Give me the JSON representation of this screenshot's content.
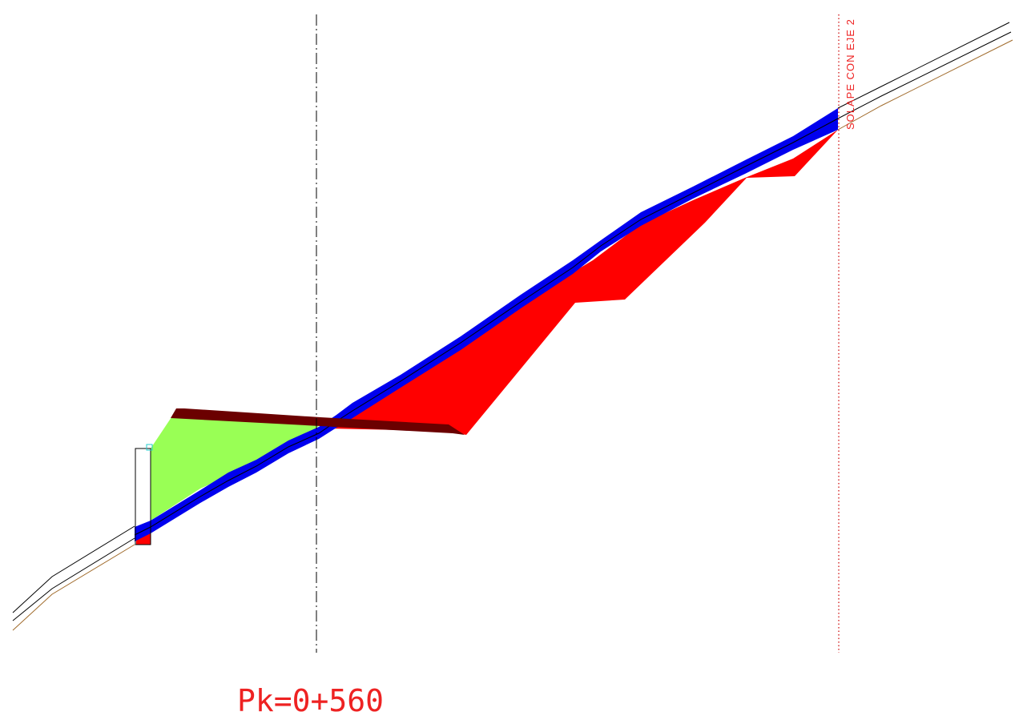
{
  "section": {
    "station_label": "Pk=0+560",
    "overlap_label": "SOLAPE CON EJE 2"
  },
  "colors": {
    "background": "#ffffff",
    "fill_cut": "#ff0000",
    "fill_embankment": "#99ff55",
    "pavement": "#0000ee",
    "platform_band": "#6b0000",
    "terrain_line": "#000000",
    "terrain_line_lower": "#a06a2a",
    "axis_line": "#000000",
    "overlap_line": "#cc0000",
    "text": "#ee2222",
    "marker": "#22cccc"
  },
  "icons": {
    "edge_marker": "square-marker-icon"
  }
}
